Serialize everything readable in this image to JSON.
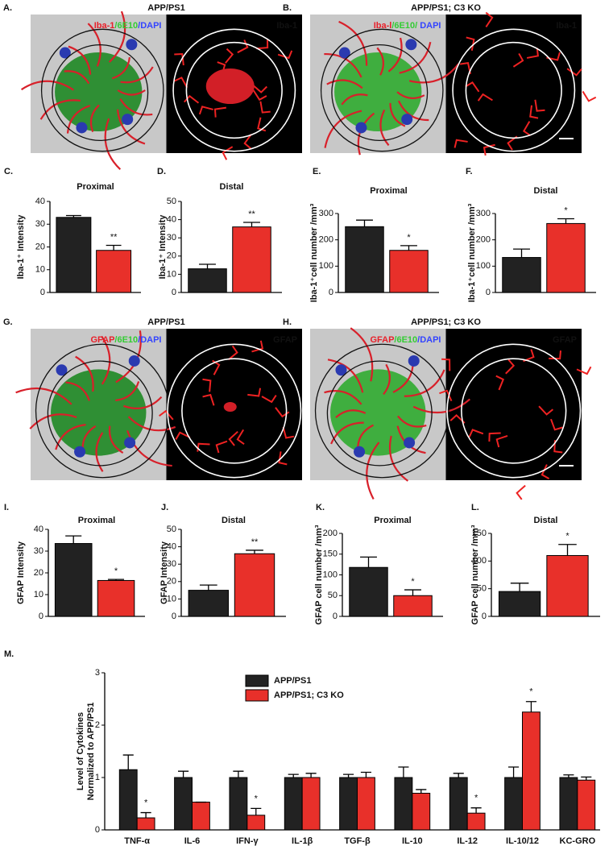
{
  "image_panels": [
    {
      "letter": "A.",
      "title": "APP/PS1",
      "stain": [
        {
          "text": "Iba-1",
          "color": "#e8202a"
        },
        {
          "text": "/6E10",
          "color": "#33cc33"
        },
        {
          "text": "/DAPI",
          "color": "#3344ff"
        }
      ],
      "right_label": "Iba-1"
    },
    {
      "letter": "B.",
      "title": "APP/PS1; C3 KO",
      "stain": [
        {
          "text": "Iba-l",
          "color": "#e8202a"
        },
        {
          "text": "/6E10/",
          "color": "#33cc33"
        },
        {
          "text": " DAPI",
          "color": "#3344ff"
        }
      ],
      "right_label": "Iba-1"
    },
    {
      "letter": "G.",
      "title": "APP/PS1",
      "stain": [
        {
          "text": "GFAP",
          "color": "#e8202a"
        },
        {
          "text": "/6E10",
          "color": "#33cc33"
        },
        {
          "text": "/DAPI",
          "color": "#3344ff"
        }
      ],
      "right_label": "GFAP"
    },
    {
      "letter": "H.",
      "title": "APP/PS1; C3 KO",
      "stain": [
        {
          "text": "GFAP",
          "color": "#e8202a"
        },
        {
          "text": "/6E10",
          "color": "#33cc33"
        },
        {
          "text": "/DAPI",
          "color": "#3344ff"
        }
      ],
      "right_label": "GFAP"
    }
  ],
  "chart_data": [
    {
      "type": "bar",
      "letter": "C.",
      "title": "Proximal",
      "ylabel": "Iba-1⁺ Intensity",
      "values": [
        33,
        18.5
      ],
      "errors": [
        0.8,
        2.2
      ],
      "colors": [
        "#222222",
        "#e8302a"
      ],
      "ylim": [
        0,
        40
      ],
      "yticks": [
        0,
        10,
        20,
        30,
        40
      ],
      "annotations": [
        {
          "text": "**",
          "index": 1
        }
      ]
    },
    {
      "type": "bar",
      "letter": "D.",
      "title": "Distal",
      "ylabel": "Iba-1⁺ Intensity",
      "values": [
        13,
        36
      ],
      "errors": [
        2.5,
        2.5
      ],
      "colors": [
        "#222222",
        "#e8302a"
      ],
      "ylim": [
        0,
        50
      ],
      "yticks": [
        0,
        10,
        20,
        30,
        40,
        50
      ],
      "annotations": [
        {
          "text": "**",
          "index": 1
        }
      ]
    },
    {
      "type": "bar",
      "letter": "E.",
      "title": "Proximal",
      "ylabel": "Iba-1⁺cell number /mm³",
      "values": [
        250,
        160
      ],
      "errors": [
        25,
        18
      ],
      "colors": [
        "#222222",
        "#e8302a"
      ],
      "ylim": [
        0,
        300
      ],
      "yticks": [
        0,
        100,
        200,
        300
      ],
      "annotations": [
        {
          "text": "*",
          "index": 1
        }
      ]
    },
    {
      "type": "bar",
      "letter": "F.",
      "title": "Distal",
      "ylabel": "Iba-1⁺cell number /mm³",
      "values": [
        133,
        262
      ],
      "errors": [
        32,
        18
      ],
      "colors": [
        "#222222",
        "#e8302a"
      ],
      "ylim": [
        0,
        300
      ],
      "yticks": [
        0,
        100,
        200,
        300
      ],
      "annotations": [
        {
          "text": "*",
          "index": 1
        }
      ]
    },
    {
      "type": "bar",
      "letter": "I.",
      "title": "Proximal",
      "ylabel": "GFAP Intensity",
      "values": [
        33.5,
        16.5
      ],
      "errors": [
        3.5,
        0.5
      ],
      "colors": [
        "#222222",
        "#e8302a"
      ],
      "ylim": [
        0,
        40
      ],
      "yticks": [
        0,
        10,
        20,
        30,
        40
      ],
      "annotations": [
        {
          "text": "*",
          "index": 1
        }
      ]
    },
    {
      "type": "bar",
      "letter": "J.",
      "title": "Distal",
      "ylabel": "GFAP Intensity",
      "values": [
        15,
        36
      ],
      "errors": [
        3,
        2
      ],
      "colors": [
        "#222222",
        "#e8302a"
      ],
      "ylim": [
        0,
        50
      ],
      "yticks": [
        0,
        10,
        20,
        30,
        40,
        50
      ],
      "annotations": [
        {
          "text": "**",
          "index": 1
        }
      ]
    },
    {
      "type": "bar",
      "letter": "K.",
      "title": "Proximal",
      "ylabel": "GFAP cell number /mm³",
      "values": [
        118,
        50
      ],
      "errors": [
        25,
        14
      ],
      "colors": [
        "#222222",
        "#e8302a"
      ],
      "ylim": [
        0,
        200
      ],
      "yticks": [
        0,
        50,
        100,
        150,
        200
      ],
      "annotations": [
        {
          "text": "*",
          "index": 1
        }
      ]
    },
    {
      "type": "bar",
      "letter": "L.",
      "title": "Distal",
      "ylabel": "GFAP cell number /mm³",
      "values": [
        45,
        110
      ],
      "errors": [
        15,
        20
      ],
      "colors": [
        "#222222",
        "#e8302a"
      ],
      "ylim": [
        0,
        150
      ],
      "yticks": [
        0,
        50,
        100,
        150
      ],
      "annotations": [
        {
          "text": "*",
          "index": 1
        }
      ]
    },
    {
      "type": "grouped_bar",
      "letter": "M.",
      "ylabel": [
        "Level of Cytokines",
        "Normalized to APP/PS1"
      ],
      "categories": [
        "TNF-α",
        "IL-6",
        "IFN-γ",
        "IL-1β",
        "TGF-β",
        "IL-10",
        "IL-12",
        "IL-10/12",
        "KC-GRO"
      ],
      "series": [
        {
          "name": "APP/PS1",
          "color": "#222222",
          "values": [
            1.15,
            1.0,
            1.0,
            1.0,
            1.0,
            1.0,
            1.0,
            1.0,
            1.0
          ],
          "errors": [
            0.28,
            0.12,
            0.12,
            0.06,
            0.06,
            0.2,
            0.08,
            0.2,
            0.05
          ]
        },
        {
          "name": "APP/PS1; C3 KO",
          "color": "#e8302a",
          "values": [
            0.23,
            0.53,
            0.28,
            1.0,
            1.0,
            0.7,
            0.32,
            2.25,
            0.95
          ],
          "errors": [
            0.1,
            0,
            0.13,
            0.08,
            0.1,
            0.07,
            0.1,
            0.2,
            0.06
          ]
        }
      ],
      "ylim": [
        0,
        3
      ],
      "yticks": [
        0,
        1,
        2,
        3
      ],
      "annotations": [
        {
          "text": "*",
          "category": 0
        },
        {
          "text": "*",
          "category": 2
        },
        {
          "text": "*",
          "category": 6
        },
        {
          "text": "*",
          "category": 7
        }
      ]
    }
  ]
}
